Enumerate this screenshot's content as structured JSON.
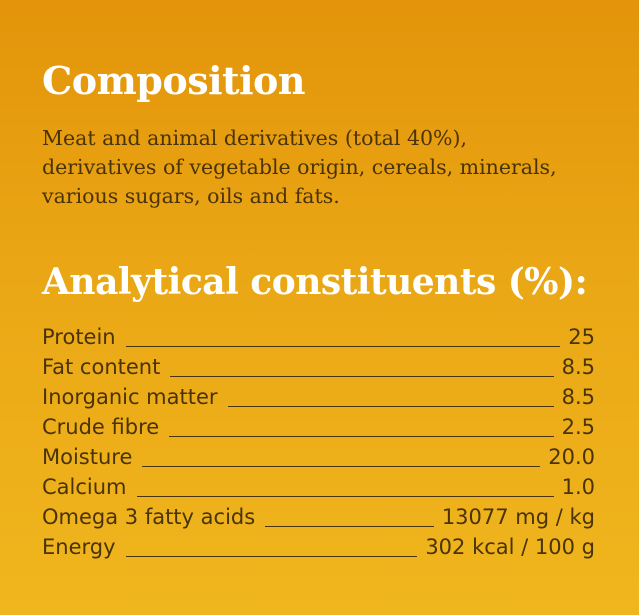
{
  "composition": {
    "title": "Composition",
    "lines": [
      "Meat and animal derivatives (total 40%),",
      "derivatives of vegetable origin, cereals, minerals,",
      "various sugars, oils and fats."
    ]
  },
  "analytical": {
    "title": "Analytical constituents (%):",
    "rows": [
      {
        "label": "Protein",
        "value": "25"
      },
      {
        "label": "Fat content",
        "value": "8.5"
      },
      {
        "label": "Inorganic matter",
        "value": "8.5"
      },
      {
        "label": "Crude fibre",
        "value": "2.5"
      },
      {
        "label": "Moisture",
        "value": "20.0"
      },
      {
        "label": "Calcium",
        "value": "1.0"
      },
      {
        "label": "Omega 3 fatty acids",
        "value": "13077 mg / kg"
      },
      {
        "label": "Energy",
        "value": "302 kcal / 100 g"
      }
    ]
  },
  "colors": {
    "background_top": "#e3940a",
    "background_bottom": "#f0b61e",
    "heading": "#ffffff",
    "body_text": "#4a3307"
  }
}
